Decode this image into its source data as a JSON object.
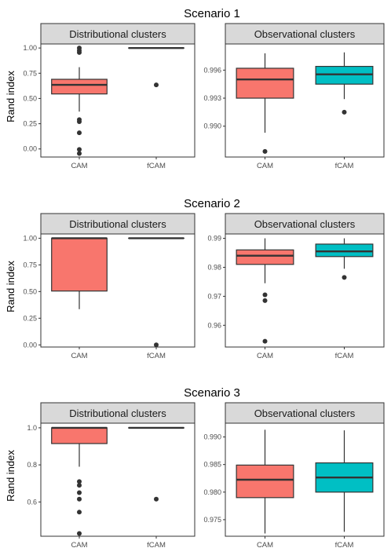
{
  "chart_data": [
    {
      "type": "boxplot",
      "title": "Scenario 1",
      "ylabel": "Rand index",
      "panels": [
        {
          "strip": "Distributional clusters",
          "ylim": [
            -0.08,
            1.04
          ],
          "yticks": [
            0.0,
            0.25,
            0.5,
            0.75,
            1.0
          ],
          "ytick_labels": [
            "0.00",
            "0.25",
            "0.50",
            "0.75",
            "1.00"
          ],
          "categories": [
            "CAM",
            "fCAM"
          ],
          "boxes": [
            {
              "category": "CAM",
              "color": "#F8766D",
              "whisker_low": 0.37,
              "q1": 0.545,
              "median": 0.635,
              "q3": 0.69,
              "whisker_high": 0.81,
              "outliers": [
                1.0,
                0.975,
                0.955,
                0.29,
                0.27,
                0.16,
                -0.005,
                -0.045
              ]
            },
            {
              "category": "fCAM",
              "color": "#00BFC4",
              "whisker_low": 1.0,
              "q1": 1.0,
              "median": 1.0,
              "q3": 1.0,
              "whisker_high": 1.0,
              "outliers": [
                0.635
              ]
            }
          ]
        },
        {
          "strip": "Observational clusters",
          "ylim": [
            0.9867,
            0.9988
          ],
          "yticks": [
            0.99,
            0.993,
            0.996
          ],
          "ytick_labels": [
            "0.990",
            "0.993",
            "0.996"
          ],
          "categories": [
            "CAM",
            "fCAM"
          ],
          "boxes": [
            {
              "category": "CAM",
              "color": "#F8766D",
              "whisker_low": 0.9893,
              "q1": 0.993,
              "median": 0.995,
              "q3": 0.9962,
              "whisker_high": 0.9978,
              "outliers": [
                0.9873
              ]
            },
            {
              "category": "fCAM",
              "color": "#00BFC4",
              "whisker_low": 0.9929,
              "q1": 0.9945,
              "median": 0.99555,
              "q3": 0.9964,
              "whisker_high": 0.9979,
              "outliers": [
                0.9915
              ]
            }
          ]
        }
      ]
    },
    {
      "type": "boxplot",
      "title": "Scenario 2",
      "ylabel": "Rand index",
      "panels": [
        {
          "strip": "Distributional clusters",
          "ylim": [
            -0.02,
            1.04
          ],
          "yticks": [
            0.0,
            0.25,
            0.5,
            0.75,
            1.0
          ],
          "ytick_labels": [
            "0.00",
            "0.25",
            "0.50",
            "0.75",
            "1.00"
          ],
          "categories": [
            "CAM",
            "fCAM"
          ],
          "boxes": [
            {
              "category": "CAM",
              "color": "#F8766D",
              "whisker_low": 0.335,
              "q1": 0.505,
              "median": 1.0,
              "q3": 1.0,
              "whisker_high": 1.0,
              "outliers": []
            },
            {
              "category": "fCAM",
              "color": "#00BFC4",
              "whisker_low": 1.0,
              "q1": 1.0,
              "median": 1.0,
              "q3": 1.0,
              "whisker_high": 1.0,
              "outliers": [
                0.0
              ]
            }
          ]
        },
        {
          "strip": "Observational clusters",
          "ylim": [
            0.9525,
            0.9915
          ],
          "yticks": [
            0.96,
            0.97,
            0.98,
            0.99
          ],
          "ytick_labels": [
            "0.96",
            "0.97",
            "0.98",
            "0.99"
          ],
          "categories": [
            "CAM",
            "fCAM"
          ],
          "boxes": [
            {
              "category": "CAM",
              "color": "#F8766D",
              "whisker_low": 0.9745,
              "q1": 0.981,
              "median": 0.984,
              "q3": 0.986,
              "whisker_high": 0.99,
              "outliers": [
                0.9705,
                0.9685,
                0.9545
              ]
            },
            {
              "category": "fCAM",
              "color": "#00BFC4",
              "whisker_low": 0.9795,
              "q1": 0.9837,
              "median": 0.9855,
              "q3": 0.988,
              "whisker_high": 0.99,
              "outliers": [
                0.9765
              ]
            }
          ]
        }
      ]
    },
    {
      "type": "boxplot",
      "title": "Scenario 3",
      "ylabel": "Rand index",
      "panels": [
        {
          "strip": "Distributional clusters",
          "ylim": [
            0.415,
            1.025
          ],
          "yticks": [
            0.6,
            0.8,
            1.0
          ],
          "ytick_labels": [
            "0.6",
            "0.8",
            "1.0"
          ],
          "categories": [
            "CAM",
            "fCAM"
          ],
          "boxes": [
            {
              "category": "CAM",
              "color": "#F8766D",
              "whisker_low": 0.79,
              "q1": 0.915,
              "median": 1.0,
              "q3": 1.0,
              "whisker_high": 1.0,
              "outliers": [
                0.71,
                0.69,
                0.65,
                0.615,
                0.545,
                0.43
              ]
            },
            {
              "category": "fCAM",
              "color": "#00BFC4",
              "whisker_low": 1.0,
              "q1": 1.0,
              "median": 1.0,
              "q3": 1.0,
              "whisker_high": 1.0,
              "outliers": [
                0.615
              ]
            }
          ]
        },
        {
          "strip": "Observational clusters",
          "ylim": [
            0.972,
            0.9925
          ],
          "yticks": [
            0.975,
            0.98,
            0.985,
            0.99
          ],
          "ytick_labels": [
            "0.975",
            "0.980",
            "0.985",
            "0.990"
          ],
          "categories": [
            "CAM",
            "fCAM"
          ],
          "boxes": [
            {
              "category": "CAM",
              "color": "#F8766D",
              "whisker_low": 0.9725,
              "q1": 0.979,
              "median": 0.98225,
              "q3": 0.9849,
              "whisker_high": 0.9913,
              "outliers": []
            },
            {
              "category": "fCAM",
              "color": "#00BFC4",
              "whisker_low": 0.9728,
              "q1": 0.98,
              "median": 0.98265,
              "q3": 0.9853,
              "whisker_high": 0.9912,
              "outliers": []
            }
          ]
        }
      ]
    }
  ]
}
